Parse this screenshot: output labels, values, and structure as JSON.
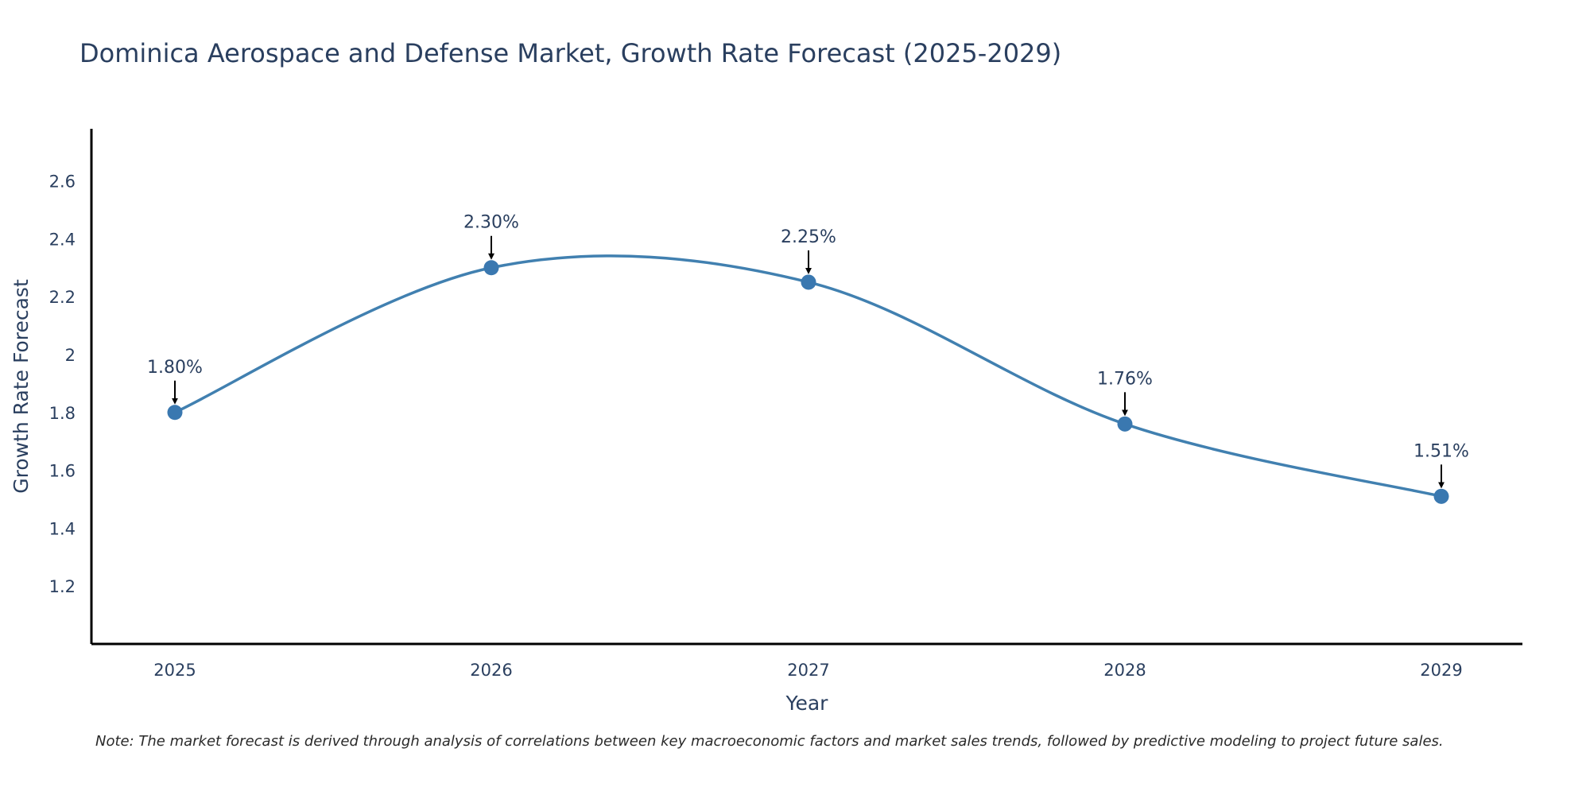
{
  "chart_data": {
    "type": "line",
    "title": "Dominica Aerospace and Defense Market, Growth Rate Forecast (2025-2029)",
    "xlabel": "Year",
    "ylabel": "Growth Rate Forecast",
    "categories": [
      "2025",
      "2026",
      "2027",
      "2028",
      "2029"
    ],
    "values": [
      1.8,
      2.3,
      2.25,
      1.76,
      1.51
    ],
    "data_labels": [
      "1.80%",
      "2.30%",
      "2.25%",
      "1.76%",
      "1.51%"
    ],
    "yticks": [
      1.2,
      1.4,
      1.6,
      1.8,
      2,
      2.2,
      2.4,
      2.6
    ],
    "ytick_labels": [
      "1.2",
      "1.4",
      "1.6",
      "1.8",
      "2",
      "2.2",
      "2.4",
      "2.6"
    ],
    "ylim": [
      1.0,
      2.78
    ],
    "grid": false,
    "line_color": "#4180b0",
    "marker_color": "#3a78b0",
    "smoothing": "spline",
    "note": "Note: The market forecast is derived through analysis of correlations between key macroeconomic factors and market sales trends, followed by predictive modeling to project future sales."
  }
}
